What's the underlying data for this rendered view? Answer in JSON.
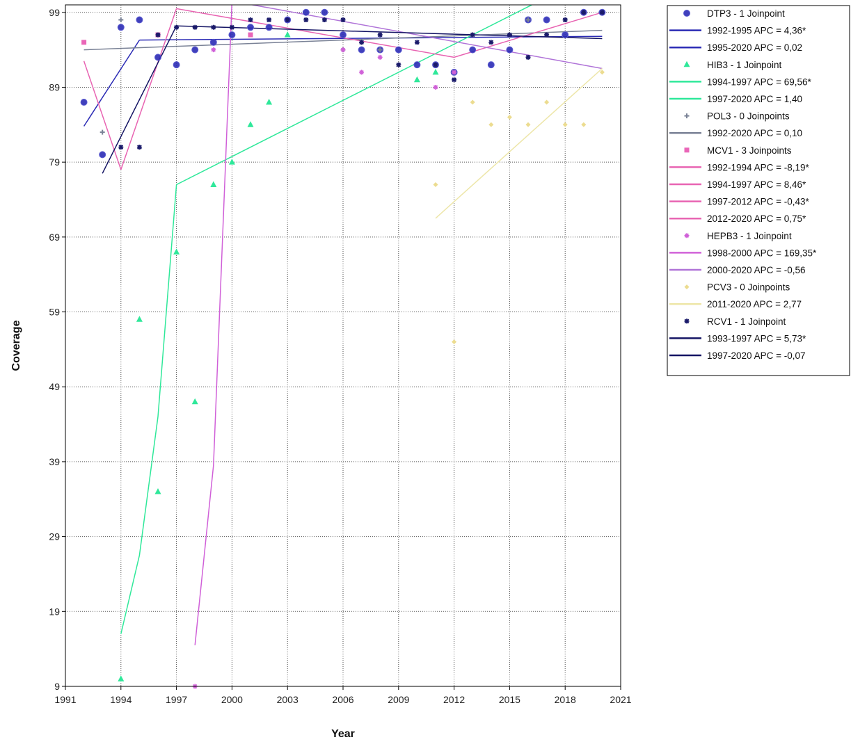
{
  "chart_data": {
    "type": "scatter",
    "xlabel": "Year",
    "ylabel": "Coverage",
    "xlim": [
      1991,
      2021
    ],
    "ylim": [
      9,
      100
    ],
    "x_ticks": [
      "1991",
      "1994",
      "1997",
      "2000",
      "2003",
      "2006",
      "2009",
      "2012",
      "2015",
      "2018",
      "2021"
    ],
    "y_ticks": [
      "99",
      "89",
      "79",
      "69",
      "59",
      "49",
      "39",
      "29",
      "19",
      "9"
    ],
    "grid": true,
    "legend_position": "top-right outside plot",
    "series": [
      {
        "name": "DTP3 - 1 Joinpoint",
        "marker": "circle",
        "color": "#2b2bb5",
        "points": [
          [
            1992,
            87
          ],
          [
            1993,
            80
          ],
          [
            1994,
            97
          ],
          [
            1995,
            98
          ],
          [
            1996,
            93
          ],
          [
            1997,
            92
          ],
          [
            1998,
            94
          ],
          [
            1999,
            95
          ],
          [
            2000,
            96
          ],
          [
            2001,
            97
          ],
          [
            2002,
            97
          ],
          [
            2003,
            98
          ],
          [
            2004,
            99
          ],
          [
            2005,
            99
          ],
          [
            2006,
            96
          ],
          [
            2007,
            94
          ],
          [
            2008,
            94
          ],
          [
            2009,
            94
          ],
          [
            2010,
            92
          ],
          [
            2011,
            92
          ],
          [
            2012,
            91
          ],
          [
            2013,
            94
          ],
          [
            2014,
            92
          ],
          [
            2015,
            94
          ],
          [
            2016,
            98
          ],
          [
            2017,
            98
          ],
          [
            2018,
            96
          ],
          [
            2019,
            99
          ],
          [
            2020,
            99
          ]
        ],
        "trends": [
          {
            "label": "1992-1995 APC  = 4,36*",
            "color": "#2b2bb5",
            "from": [
              1992,
              83.8
            ],
            "to": [
              1995,
              95.3
            ]
          },
          {
            "label": "1995-2020 APC  = 0,02",
            "color": "#2b2bb5",
            "from": [
              1995,
              95.3
            ],
            "to": [
              2020,
              95.8
            ]
          }
        ]
      },
      {
        "name": "HIB3 - 1 Joinpoint",
        "marker": "triangle",
        "color": "#2fe89a",
        "points": [
          [
            1994,
            10
          ],
          [
            1995,
            58
          ],
          [
            1996,
            35
          ],
          [
            1997,
            67
          ],
          [
            1998,
            47
          ],
          [
            1999,
            76
          ],
          [
            2000,
            79
          ],
          [
            2001,
            84
          ],
          [
            2002,
            87
          ],
          [
            2003,
            96
          ],
          [
            2010,
            90
          ],
          [
            2011,
            91
          ]
        ],
        "trends": [
          {
            "label": "1994-1997 APC  = 69,56*",
            "color": "#2fe89a",
            "from": [
              1994,
              16
            ],
            "to": [
              1995,
              26.5
            ],
            "via": [
              [
                1996,
                45
              ],
              [
                1997,
                76
              ]
            ]
          },
          {
            "label": "1997-2020 APC  =  1,40",
            "color": "#2fe89a",
            "from": [
              1997,
              76
            ],
            "to": [
              2017,
              101
            ]
          }
        ]
      },
      {
        "name": "POL3 - 0 Joinpoints",
        "marker": "plus",
        "color": "#7a8296",
        "points": [
          [
            1993,
            83
          ],
          [
            1994,
            98
          ],
          [
            2006,
            94
          ],
          [
            2007,
            95
          ],
          [
            2008,
            94
          ],
          [
            2011,
            92
          ],
          [
            2012,
            91
          ],
          [
            2013,
            96
          ],
          [
            2016,
            98
          ]
        ],
        "trends": [
          {
            "label": "1992-2020 APC  = 0,10",
            "color": "#7a8296",
            "from": [
              1992,
              94
            ],
            "to": [
              2020,
              96.6
            ]
          }
        ]
      },
      {
        "name": "MCV1 - 3 Joinpoints",
        "marker": "square",
        "color": "#ea66b8",
        "points": [
          [
            1992,
            95
          ],
          [
            1996,
            96
          ],
          [
            2001,
            96
          ]
        ],
        "trends": [
          {
            "label": "1992-1994 APC  = -8,19*",
            "color": "#e864b2",
            "from": [
              1992,
              92.5
            ],
            "to": [
              1994,
              78
            ]
          },
          {
            "label": "1994-1997 APC  =  8,46*",
            "color": "#e864b2",
            "from": [
              1994,
              78
            ],
            "to": [
              1997,
              99.5
            ]
          },
          {
            "label": "1997-2012 APC  = -0,43*",
            "color": "#e864b2",
            "from": [
              1997,
              99.5
            ],
            "to": [
              2012,
              93
            ]
          },
          {
            "label": "2012-2020 APC  =  0,75*",
            "color": "#e864b2",
            "from": [
              2012,
              93
            ],
            "to": [
              2020,
              99
            ]
          }
        ]
      },
      {
        "name": "HEPB3 - 1 Joinpoint",
        "marker": "star",
        "color": "#d060d8",
        "points": [
          [
            1998,
            9
          ],
          [
            1999,
            94
          ],
          [
            2006,
            94
          ],
          [
            2007,
            91
          ],
          [
            2008,
            93
          ],
          [
            2011,
            89
          ],
          [
            2012,
            91
          ],
          [
            2013,
            96
          ]
        ],
        "trends": [
          {
            "label": "1998-2000 APC  = 169,35*",
            "color": "#d060d8",
            "from": [
              1998,
              14.5
            ],
            "to": [
              2000,
              100.5
            ],
            "via": [
              [
                1999,
                38.5
              ]
            ]
          },
          {
            "label": "2000-2020 APC  =  -0,56",
            "color": "#b074d8",
            "from": [
              2000,
              100.5
            ],
            "to": [
              2020,
              91.5
            ]
          }
        ]
      },
      {
        "name": "PCV3 - 0 Joinpoints",
        "marker": "diamond",
        "color": "#ecdc90",
        "points": [
          [
            2011,
            76
          ],
          [
            2012,
            55
          ],
          [
            2013,
            87
          ],
          [
            2014,
            84
          ],
          [
            2015,
            85
          ],
          [
            2016,
            84
          ],
          [
            2017,
            87
          ],
          [
            2018,
            84
          ],
          [
            2019,
            84
          ],
          [
            2020,
            91
          ]
        ],
        "trends": [
          {
            "label": "2011-2020 APC  = 2,77",
            "color": "#ede6a8",
            "from": [
              2011,
              71.5
            ],
            "to": [
              2020,
              91.5
            ]
          }
        ]
      },
      {
        "name": "RCV1 - 1 Joinpoint",
        "marker": "asterisk",
        "color": "#1a1a6a",
        "points": [
          [
            1994,
            81
          ],
          [
            1995,
            81
          ],
          [
            1996,
            96
          ],
          [
            1997,
            97
          ],
          [
            1998,
            97
          ],
          [
            1999,
            97
          ],
          [
            2000,
            97
          ],
          [
            2001,
            98
          ],
          [
            2002,
            98
          ],
          [
            2003,
            98
          ],
          [
            2004,
            98
          ],
          [
            2005,
            98
          ],
          [
            2006,
            98
          ],
          [
            2007,
            95
          ],
          [
            2008,
            96
          ],
          [
            2009,
            92
          ],
          [
            2010,
            95
          ],
          [
            2011,
            92
          ],
          [
            2012,
            90
          ],
          [
            2013,
            96
          ],
          [
            2014,
            95
          ],
          [
            2015,
            96
          ],
          [
            2016,
            93
          ],
          [
            2017,
            96
          ],
          [
            2018,
            98
          ],
          [
            2019,
            99
          ],
          [
            2020,
            99
          ]
        ],
        "trends": [
          {
            "label": "1993-1997 APC  =  5,73*",
            "color": "#141464",
            "from": [
              1993,
              77.5
            ],
            "to": [
              1997,
              97.2
            ]
          },
          {
            "label": "1997-2020 APC  = -0,07",
            "color": "#141464",
            "from": [
              1997,
              97.2
            ],
            "to": [
              2020,
              95.5
            ]
          }
        ]
      }
    ]
  }
}
